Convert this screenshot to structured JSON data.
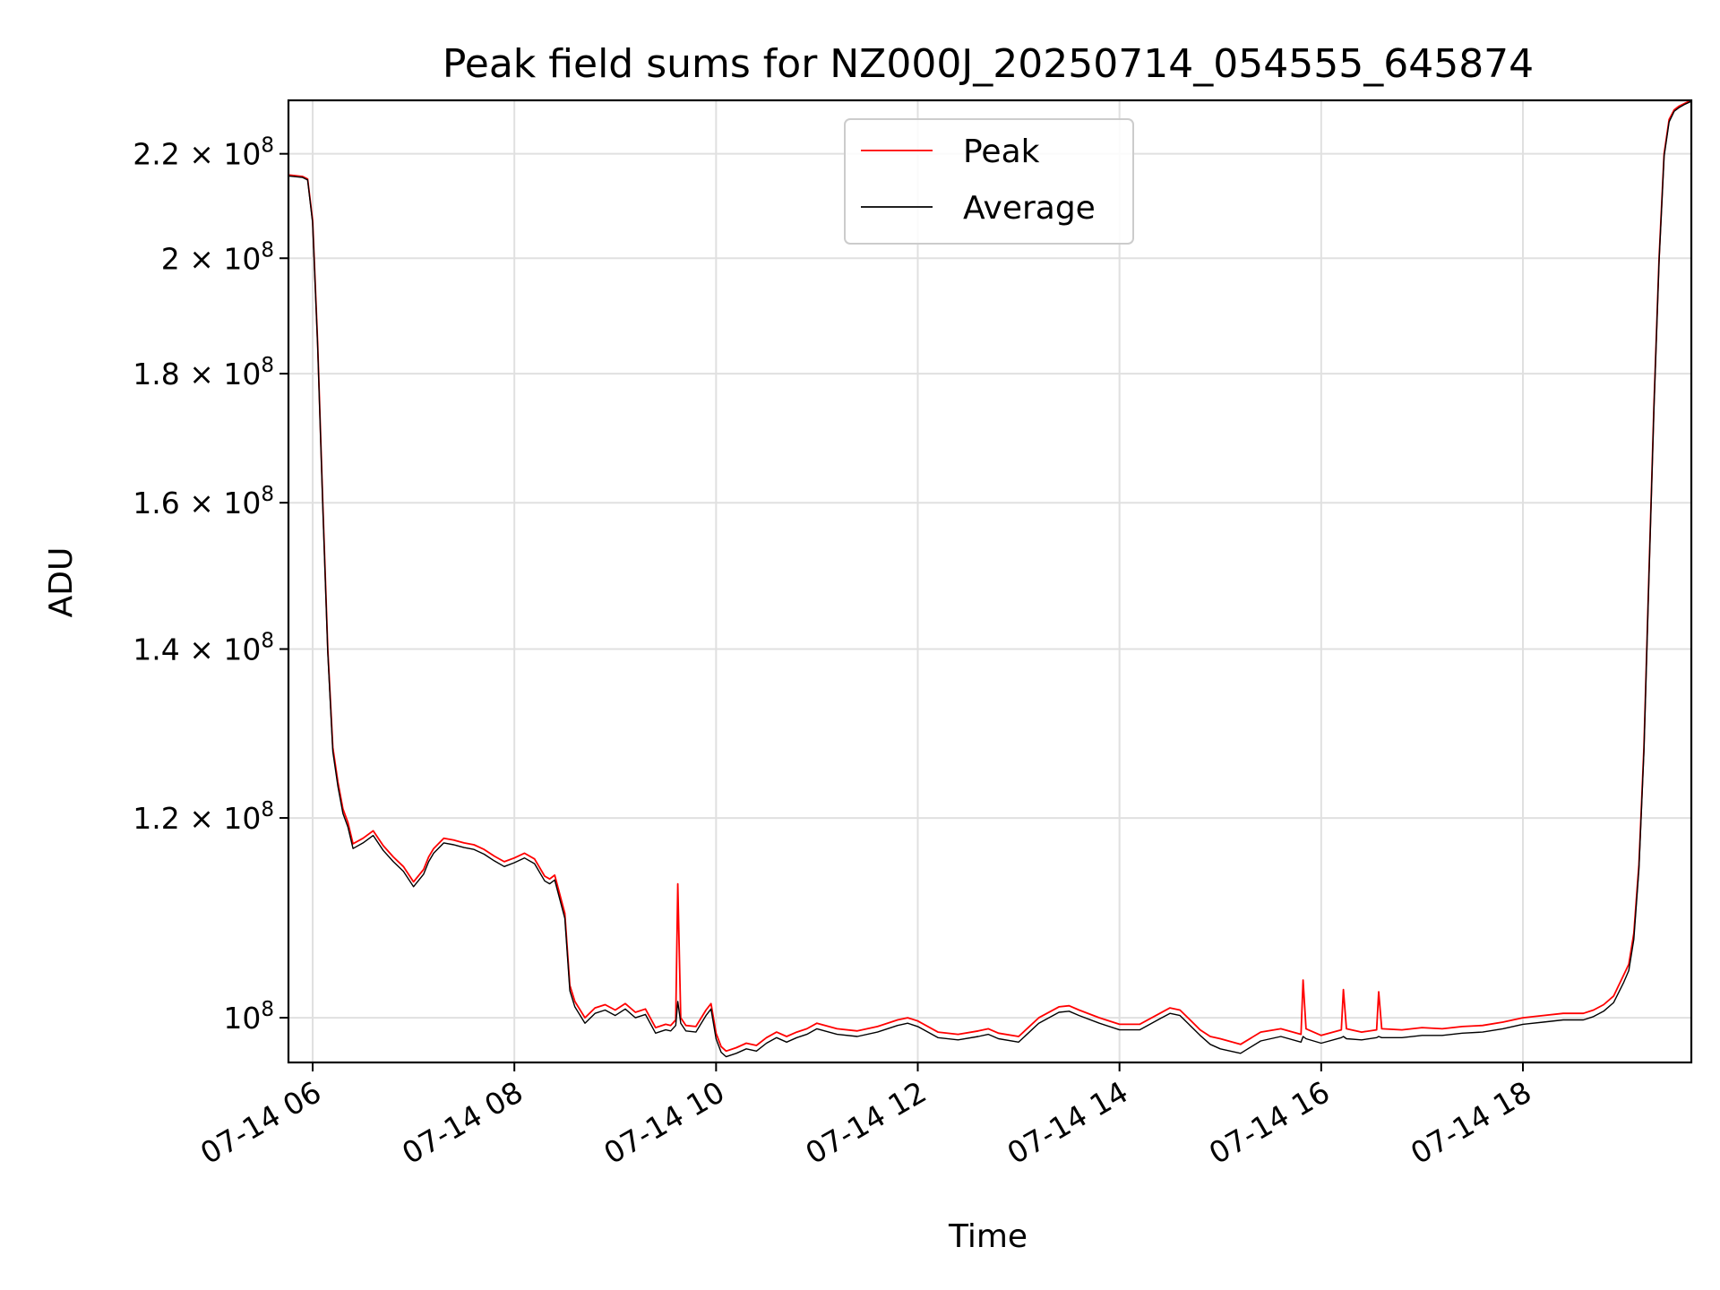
{
  "chart_data": {
    "type": "line",
    "title": "Peak field sums for NZ000J_20250714_054555_645874",
    "xlabel": "Time",
    "ylabel": "ADU",
    "x_unit": "hours (2025-07-14, decimal hour of day)",
    "xlim": [
      5.76,
      19.67
    ],
    "ylim": [
      96000000,
      231000000
    ],
    "y_scale": "log",
    "grid": true,
    "legend_position": "upper center",
    "x_ticks": [
      {
        "value": 6,
        "label": "07-14 06"
      },
      {
        "value": 8,
        "label": "07-14 08"
      },
      {
        "value": 10,
        "label": "07-14 10"
      },
      {
        "value": 12,
        "label": "07-14 12"
      },
      {
        "value": 14,
        "label": "07-14 14"
      },
      {
        "value": 16,
        "label": "07-14 16"
      },
      {
        "value": 18,
        "label": "07-14 18"
      }
    ],
    "y_ticks": [
      {
        "value": 100000000,
        "mantissa": "10",
        "exponent": "8"
      },
      {
        "value": 120000000,
        "mantissa": "1.2 × 10",
        "exponent": "8"
      },
      {
        "value": 140000000,
        "mantissa": "1.4 × 10",
        "exponent": "8"
      },
      {
        "value": 160000000,
        "mantissa": "1.6 × 10",
        "exponent": "8"
      },
      {
        "value": 180000000,
        "mantissa": "1.8 × 10",
        "exponent": "8"
      },
      {
        "value": 200000000,
        "mantissa": "2 × 10",
        "exponent": "8"
      },
      {
        "value": 220000000,
        "mantissa": "2.2 × 10",
        "exponent": "8"
      }
    ],
    "series": [
      {
        "name": "Peak",
        "color": "#ff0000",
        "x": [
          5.76,
          5.9,
          5.95,
          6.0,
          6.05,
          6.1,
          6.15,
          6.2,
          6.25,
          6.3,
          6.35,
          6.4,
          6.5,
          6.6,
          6.7,
          6.8,
          6.9,
          7.0,
          7.1,
          7.15,
          7.2,
          7.3,
          7.4,
          7.5,
          7.6,
          7.7,
          7.8,
          7.9,
          8.0,
          8.1,
          8.2,
          8.3,
          8.35,
          8.4,
          8.5,
          8.55,
          8.6,
          8.7,
          8.8,
          8.9,
          9.0,
          9.1,
          9.2,
          9.3,
          9.4,
          9.5,
          9.55,
          9.6,
          9.62,
          9.65,
          9.7,
          9.8,
          9.9,
          9.95,
          10.0,
          10.05,
          10.1,
          10.2,
          10.3,
          10.4,
          10.5,
          10.6,
          10.7,
          10.8,
          10.9,
          11.0,
          11.2,
          11.4,
          11.6,
          11.8,
          11.9,
          12.0,
          12.2,
          12.4,
          12.6,
          12.7,
          12.8,
          13.0,
          13.2,
          13.4,
          13.5,
          13.6,
          13.8,
          14.0,
          14.2,
          14.4,
          14.5,
          14.6,
          14.7,
          14.8,
          14.9,
          15.0,
          15.2,
          15.4,
          15.6,
          15.8,
          15.82,
          15.85,
          16.0,
          16.2,
          16.22,
          16.25,
          16.4,
          16.55,
          16.57,
          16.6,
          16.8,
          17.0,
          17.2,
          17.4,
          17.6,
          17.8,
          18.0,
          18.2,
          18.4,
          18.6,
          18.7,
          18.8,
          18.9,
          19.0,
          19.05,
          19.1,
          19.15,
          19.2,
          19.25,
          19.3,
          19.35,
          19.4,
          19.45,
          19.5,
          19.55,
          19.6,
          19.67
        ],
        "y": [
          215800000,
          215500000,
          215000000,
          207000000,
          185000000,
          160000000,
          140000000,
          128000000,
          124000000,
          121000000,
          119500000,
          117200000,
          117800000,
          118600000,
          117000000,
          115800000,
          114800000,
          113200000,
          114500000,
          115800000,
          116700000,
          117800000,
          117600000,
          117300000,
          117100000,
          116600000,
          115900000,
          115300000,
          115700000,
          116200000,
          115600000,
          113800000,
          113500000,
          113900000,
          110000000,
          103000000,
          101500000,
          100000000,
          100900000,
          101200000,
          100700000,
          101300000,
          100500000,
          100800000,
          99100000,
          99400000,
          99300000,
          99800000,
          113000000,
          100000000,
          99300000,
          99200000,
          100700000,
          101300000,
          98600000,
          97400000,
          97000000,
          97300000,
          97700000,
          97500000,
          98200000,
          98700000,
          98300000,
          98700000,
          99000000,
          99500000,
          99000000,
          98800000,
          99200000,
          99800000,
          100000000,
          99700000,
          98700000,
          98500000,
          98800000,
          99000000,
          98600000,
          98300000,
          100000000,
          101000000,
          101100000,
          100700000,
          100000000,
          99400000,
          99400000,
          100400000,
          100900000,
          100700000,
          99800000,
          98900000,
          98300000,
          98100000,
          97600000,
          98700000,
          99000000,
          98500000,
          103500000,
          99000000,
          98400000,
          98900000,
          102600000,
          99000000,
          98700000,
          98900000,
          102400000,
          99000000,
          98900000,
          99100000,
          99000000,
          99200000,
          99300000,
          99600000,
          100000000,
          100200000,
          100400000,
          100400000,
          100700000,
          101200000,
          102000000,
          104000000,
          105000000,
          108000000,
          115000000,
          128000000,
          150000000,
          175000000,
          200000000,
          220000000,
          227000000,
          229000000,
          229800000,
          230300000,
          231000000
        ]
      },
      {
        "name": "Average",
        "color": "#000000",
        "x": [
          5.76,
          5.9,
          5.95,
          6.0,
          6.05,
          6.1,
          6.15,
          6.2,
          6.25,
          6.3,
          6.35,
          6.4,
          6.5,
          6.6,
          6.7,
          6.8,
          6.9,
          7.0,
          7.1,
          7.15,
          7.2,
          7.3,
          7.4,
          7.5,
          7.6,
          7.7,
          7.8,
          7.9,
          8.0,
          8.1,
          8.2,
          8.3,
          8.35,
          8.4,
          8.5,
          8.55,
          8.6,
          8.7,
          8.8,
          8.9,
          9.0,
          9.1,
          9.2,
          9.3,
          9.4,
          9.5,
          9.55,
          9.6,
          9.62,
          9.65,
          9.7,
          9.8,
          9.9,
          9.95,
          10.0,
          10.05,
          10.1,
          10.2,
          10.3,
          10.4,
          10.5,
          10.6,
          10.7,
          10.8,
          10.9,
          11.0,
          11.2,
          11.4,
          11.6,
          11.8,
          11.9,
          12.0,
          12.2,
          12.4,
          12.6,
          12.7,
          12.8,
          13.0,
          13.2,
          13.4,
          13.5,
          13.6,
          13.8,
          14.0,
          14.2,
          14.4,
          14.5,
          14.6,
          14.7,
          14.8,
          14.9,
          15.0,
          15.2,
          15.4,
          15.6,
          15.8,
          15.82,
          15.85,
          16.0,
          16.2,
          16.22,
          16.25,
          16.4,
          16.55,
          16.57,
          16.6,
          16.8,
          17.0,
          17.2,
          17.4,
          17.6,
          17.8,
          18.0,
          18.2,
          18.4,
          18.6,
          18.7,
          18.8,
          18.9,
          19.0,
          19.05,
          19.1,
          19.15,
          19.2,
          19.25,
          19.3,
          19.35,
          19.4,
          19.45,
          19.5,
          19.55,
          19.6,
          19.67
        ],
        "y": [
          215600000,
          215300000,
          214800000,
          206500000,
          184500000,
          159500000,
          139500000,
          127500000,
          123500000,
          120500000,
          119000000,
          116700000,
          117300000,
          118100000,
          116500000,
          115300000,
          114300000,
          112700000,
          114000000,
          115300000,
          116200000,
          117300000,
          117100000,
          116800000,
          116600000,
          116100000,
          115400000,
          114800000,
          115200000,
          115700000,
          115100000,
          113300000,
          113000000,
          113400000,
          109500000,
          102500000,
          101000000,
          99500000,
          100400000,
          100700000,
          100200000,
          100800000,
          100000000,
          100300000,
          98600000,
          98900000,
          98800000,
          99300000,
          101500000,
          99500000,
          98800000,
          98700000,
          100200000,
          100800000,
          98100000,
          96900000,
          96500000,
          96800000,
          97200000,
          97000000,
          97700000,
          98200000,
          97800000,
          98200000,
          98500000,
          99000000,
          98500000,
          98300000,
          98700000,
          99300000,
          99500000,
          99200000,
          98200000,
          98000000,
          98300000,
          98500000,
          98100000,
          97800000,
          99500000,
          100500000,
          100600000,
          100200000,
          99500000,
          98900000,
          98900000,
          99900000,
          100400000,
          100200000,
          99300000,
          98400000,
          97600000,
          97200000,
          96800000,
          97900000,
          98300000,
          97800000,
          98300000,
          98100000,
          97700000,
          98200000,
          98300000,
          98100000,
          98000000,
          98200000,
          98300000,
          98200000,
          98200000,
          98400000,
          98400000,
          98600000,
          98700000,
          99000000,
          99400000,
          99600000,
          99800000,
          99800000,
          100100000,
          100600000,
          101400000,
          103300000,
          104400000,
          107400000,
          114500000,
          127500000,
          149500000,
          174500000,
          199500000,
          219500000,
          226500000,
          228700000,
          229500000,
          230100000,
          230800000
        ]
      }
    ]
  }
}
